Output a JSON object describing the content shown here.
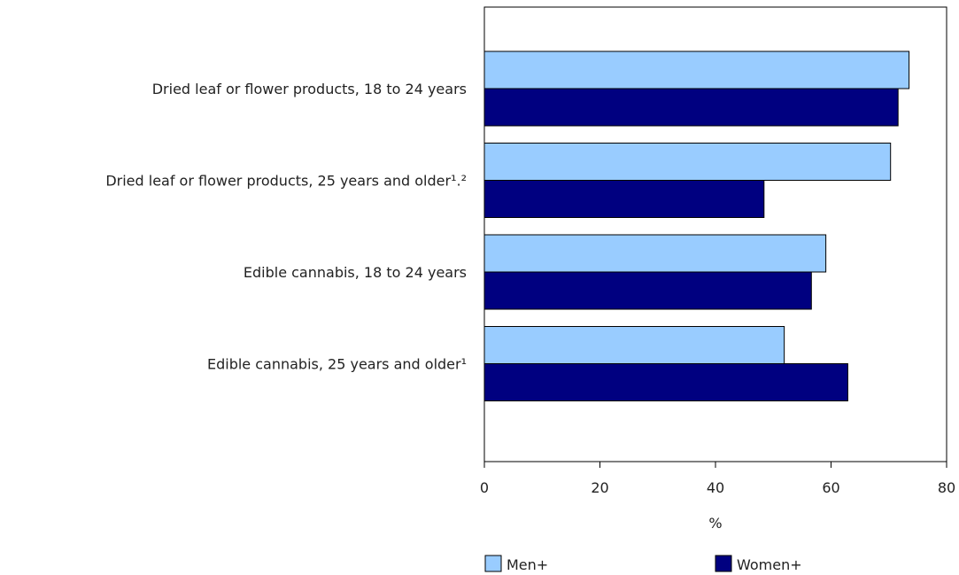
{
  "chart_data": {
    "type": "bar",
    "orientation": "horizontal",
    "categories": [
      "Dried leaf or flower products, 18 to 24 years",
      "Dried leaf or flower products, 25 years and older¹.²",
      "Edible cannabis, 18 to 24 years",
      "Edible cannabis, 25 years and older¹"
    ],
    "series": [
      {
        "name": "Men+",
        "color": "#99ccff",
        "values": [
          73.5,
          70.3,
          59.1,
          51.9
        ]
      },
      {
        "name": "Women+",
        "color": "#000080",
        "values": [
          71.6,
          48.4,
          56.6,
          62.9
        ]
      }
    ],
    "xlabel": "%",
    "xlim": [
      0,
      80
    ],
    "xticks": [
      "0",
      "20",
      "40",
      "60",
      "80"
    ],
    "grid": false,
    "legend_position": "bottom"
  }
}
